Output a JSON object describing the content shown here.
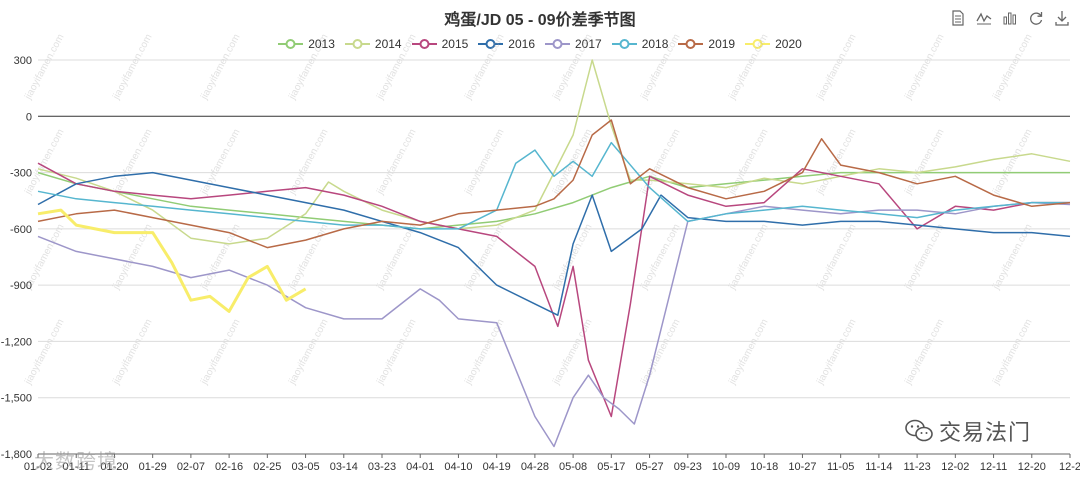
{
  "chart_data": {
    "type": "line",
    "title": "鸡蛋/JD 05 - 09价差季节图",
    "ylim": [
      -1800,
      300
    ],
    "yticks": [
      300,
      0,
      -300,
      -600,
      -900,
      -1200,
      -1500,
      -1800
    ],
    "ytick_labels": [
      "300",
      "0",
      "-300",
      "-600",
      "-900",
      "-1,200",
      "-1,500",
      "-1,800"
    ],
    "x_labels": [
      "01-02",
      "01-11",
      "01-20",
      "01-29",
      "02-07",
      "02-16",
      "02-25",
      "03-05",
      "03-14",
      "03-23",
      "04-01",
      "04-10",
      "04-19",
      "04-28",
      "05-08",
      "05-17",
      "05-27",
      "09-23",
      "10-09",
      "10-18",
      "10-27",
      "11-05",
      "11-14",
      "11-23",
      "12-02",
      "12-11",
      "12-20",
      "12-2"
    ],
    "legend_position": "top-center",
    "grid": "horizontal",
    "x_domain": [
      0,
      27
    ],
    "series": [
      {
        "name": "2013",
        "color": "#91cc75",
        "x": [
          0,
          1,
          2,
          3,
          4,
          5,
          6,
          7,
          8,
          9,
          10,
          11,
          12,
          13,
          14,
          15,
          16,
          17,
          18,
          19,
          20,
          21,
          22,
          23,
          24,
          25,
          26,
          27
        ],
        "y": [
          -300,
          -360,
          -400,
          -440,
          -480,
          -500,
          -520,
          -540,
          -560,
          -580,
          -600,
          -580,
          -560,
          -520,
          -460,
          -380,
          -320,
          -380,
          -360,
          -340,
          -320,
          -300,
          -300,
          -300,
          -300,
          -300,
          -300,
          -300
        ]
      },
      {
        "name": "2014",
        "color": "#c8d98d",
        "x": [
          0,
          1,
          2,
          3,
          4,
          5,
          6,
          7,
          7.6,
          8,
          9,
          10,
          11,
          12,
          13,
          13.5,
          14,
          14.5,
          15,
          15.5,
          16,
          17,
          18,
          19,
          20,
          21,
          22,
          23,
          24,
          25,
          26,
          27
        ],
        "y": [
          -280,
          -330,
          -400,
          -500,
          -650,
          -680,
          -650,
          -520,
          -350,
          -400,
          -500,
          -560,
          -600,
          -580,
          -500,
          -300,
          -100,
          300,
          -50,
          -340,
          -340,
          -360,
          -380,
          -330,
          -360,
          -320,
          -280,
          -300,
          -270,
          -230,
          -200,
          -240
        ]
      },
      {
        "name": "2015",
        "color": "#b8477e",
        "x": [
          0,
          1,
          2,
          3,
          4,
          5,
          6,
          7,
          8,
          9,
          10,
          11,
          12,
          13,
          13.6,
          14,
          14.4,
          15,
          15.5,
          16,
          17,
          18,
          19,
          20,
          21,
          22,
          23,
          24,
          25,
          26,
          27
        ],
        "y": [
          -250,
          -360,
          -400,
          -420,
          -440,
          -420,
          -400,
          -380,
          -420,
          -480,
          -560,
          -600,
          -640,
          -800,
          -1120,
          -800,
          -1300,
          -1600,
          -1000,
          -320,
          -420,
          -480,
          -460,
          -280,
          -320,
          -360,
          -600,
          -480,
          -500,
          -460,
          -460
        ]
      },
      {
        "name": "2016",
        "color": "#2f6eaa",
        "x": [
          0,
          1,
          2,
          3,
          4,
          5,
          6,
          7,
          8,
          9,
          10,
          11,
          12,
          13,
          13.6,
          14,
          14.5,
          15,
          15.8,
          16.3,
          17,
          18,
          19,
          20,
          21,
          22,
          23,
          24,
          25,
          26,
          27
        ],
        "y": [
          -470,
          -360,
          -320,
          -300,
          -340,
          -380,
          -420,
          -460,
          -500,
          -560,
          -620,
          -700,
          -900,
          -1000,
          -1060,
          -680,
          -420,
          -720,
          -600,
          -420,
          -540,
          -560,
          -560,
          -580,
          -560,
          -560,
          -580,
          -600,
          -620,
          -620,
          -640
        ]
      },
      {
        "name": "2017",
        "color": "#9d96c9",
        "x": [
          0,
          1,
          2,
          3,
          4,
          5,
          6,
          7,
          8,
          9,
          10,
          10.5,
          11,
          12,
          13,
          13.5,
          14,
          14.4,
          14.8,
          15.2,
          15.6,
          16,
          17,
          18,
          19,
          20,
          21,
          22,
          23,
          24,
          25,
          26,
          27
        ],
        "y": [
          -640,
          -720,
          -760,
          -800,
          -860,
          -820,
          -900,
          -1020,
          -1080,
          -1080,
          -920,
          -980,
          -1080,
          -1100,
          -1600,
          -1760,
          -1500,
          -1380,
          -1500,
          -1560,
          -1640,
          -1380,
          -560,
          -520,
          -480,
          -500,
          -520,
          -500,
          -500,
          -520,
          -480,
          -460,
          -470
        ]
      },
      {
        "name": "2018",
        "color": "#56b6cf",
        "x": [
          0,
          1,
          2,
          3,
          4,
          5,
          6,
          7,
          8,
          9,
          10,
          11,
          12,
          12.5,
          13,
          13.5,
          14,
          14.5,
          15,
          16,
          17,
          18,
          19,
          20,
          21,
          22,
          23,
          24,
          25,
          26,
          27
        ],
        "y": [
          -400,
          -440,
          -460,
          -480,
          -500,
          -520,
          -540,
          -560,
          -580,
          -580,
          -600,
          -600,
          -500,
          -250,
          -180,
          -320,
          -240,
          -320,
          -140,
          -380,
          -560,
          -520,
          -500,
          -480,
          -500,
          -520,
          -540,
          -500,
          -480,
          -460,
          -460
        ]
      },
      {
        "name": "2019",
        "color": "#b86a47",
        "x": [
          0,
          1,
          2,
          3,
          4,
          5,
          6,
          7,
          8,
          9,
          10,
          11,
          12,
          13,
          13.5,
          14,
          14.5,
          15,
          15.5,
          16,
          17,
          18,
          19,
          20,
          20.5,
          21,
          22,
          23,
          24,
          25,
          26,
          27
        ],
        "y": [
          -560,
          -520,
          -500,
          -540,
          -580,
          -620,
          -700,
          -660,
          -600,
          -560,
          -580,
          -520,
          -500,
          -480,
          -440,
          -340,
          -100,
          -20,
          -360,
          -280,
          -380,
          -440,
          -400,
          -300,
          -120,
          -260,
          -300,
          -360,
          -320,
          -420,
          -480,
          -460
        ]
      },
      {
        "name": "2020",
        "color": "#f8ed6a",
        "x": [
          0,
          0.6,
          1,
          1.5,
          2,
          2.5,
          3,
          3.5,
          4,
          4.5,
          5,
          5.5,
          6,
          6.5,
          7
        ],
        "y": [
          -520,
          -500,
          -580,
          -600,
          -620,
          -620,
          -620,
          -780,
          -980,
          -960,
          -1040,
          -860,
          -800,
          -980,
          -920
        ]
      }
    ]
  },
  "legend": {
    "items": [
      "2013",
      "2014",
      "2015",
      "2016",
      "2017",
      "2018",
      "2019",
      "2020"
    ]
  },
  "toolbox": {
    "icons": [
      "data-view-icon",
      "line-chart-icon",
      "bar-chart-icon",
      "restore-icon",
      "download-icon"
    ]
  },
  "watermarks": {
    "brand": "交易法门",
    "left": "大数跨境",
    "tile": "交易法门",
    "tile_url": "jiaoyifamen.com"
  }
}
